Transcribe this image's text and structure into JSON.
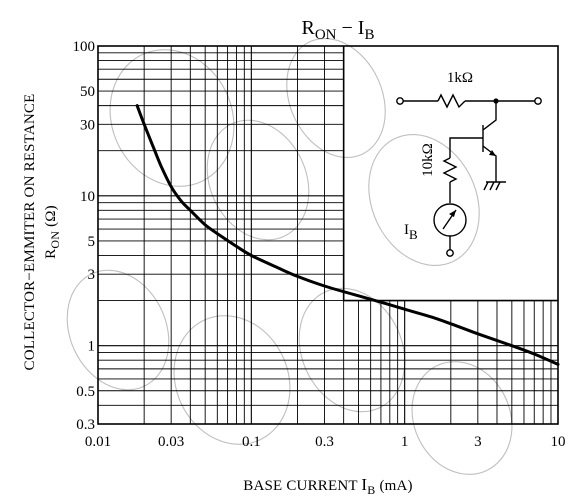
{
  "chart_data": {
    "type": "line",
    "title": {
      "main": "R",
      "main_sub": "ON",
      "dash": " − ",
      "var": "I",
      "var_sub": "B"
    },
    "xlabel": {
      "main": "BASE CURRENT  ",
      "var": "I",
      "var_sub": "B",
      "unit": " (mA)"
    },
    "ylabel": {
      "line1": "COLLECTOR−EMMITER ON RESTANCE",
      "line2_main": "R",
      "line2_sub": "ON",
      "line2_unit": "   (Ω)"
    },
    "x_scale": "log",
    "y_scale": "log",
    "xlim": [
      0.01,
      10
    ],
    "ylim": [
      0.3,
      100
    ],
    "x_tick_labels": [
      {
        "value": 0.01,
        "label": "0.01"
      },
      {
        "value": 0.03,
        "label": "0.03"
      },
      {
        "value": 0.1,
        "label": "0.1"
      },
      {
        "value": 0.3,
        "label": "0.3"
      },
      {
        "value": 1,
        "label": "1"
      },
      {
        "value": 3,
        "label": "3"
      },
      {
        "value": 10,
        "label": "10"
      }
    ],
    "y_tick_labels": [
      {
        "value": 100,
        "label": "100"
      },
      {
        "value": 50,
        "label": "50"
      },
      {
        "value": 30,
        "label": "30"
      },
      {
        "value": 10,
        "label": "10"
      },
      {
        "value": 5,
        "label": "5"
      },
      {
        "value": 3,
        "label": "3"
      },
      {
        "value": 1,
        "label": "1"
      },
      {
        "value": 0.5,
        "label": "0.5"
      },
      {
        "value": 0.3,
        "label": "0.3"
      }
    ],
    "x_grid": [
      0.02,
      0.03,
      0.04,
      0.05,
      0.06,
      0.07,
      0.08,
      0.09,
      0.1,
      0.2,
      0.3,
      0.4,
      0.5,
      0.6,
      0.7,
      0.8,
      0.9,
      1,
      2,
      3,
      4,
      5,
      6,
      7,
      8,
      9
    ],
    "y_grid": [
      0.4,
      0.5,
      0.6,
      0.7,
      0.8,
      0.9,
      1,
      2,
      3,
      4,
      5,
      6,
      7,
      8,
      9,
      10,
      20,
      30,
      40,
      50,
      60,
      70,
      80,
      90
    ],
    "grid": true,
    "series": [
      {
        "x": [
          0.018,
          0.02,
          0.023,
          0.026,
          0.03,
          0.035,
          0.04,
          0.05,
          0.06,
          0.08,
          0.1,
          0.15,
          0.2,
          0.3,
          0.5,
          0.7,
          1,
          1.5,
          2,
          3,
          5,
          7,
          10
        ],
        "y": [
          40,
          30,
          21,
          15.5,
          11.5,
          9.2,
          8,
          6.4,
          5.6,
          4.6,
          4.0,
          3.3,
          2.9,
          2.5,
          2.15,
          1.95,
          1.75,
          1.55,
          1.4,
          1.2,
          1.0,
          0.88,
          0.75
        ]
      }
    ],
    "inset_circuit": {
      "position": "top-right",
      "labels": {
        "collector_resistor": "1kΩ",
        "base_resistor": "10kΩ",
        "meter": "I",
        "meter_sub": "B"
      }
    }
  }
}
